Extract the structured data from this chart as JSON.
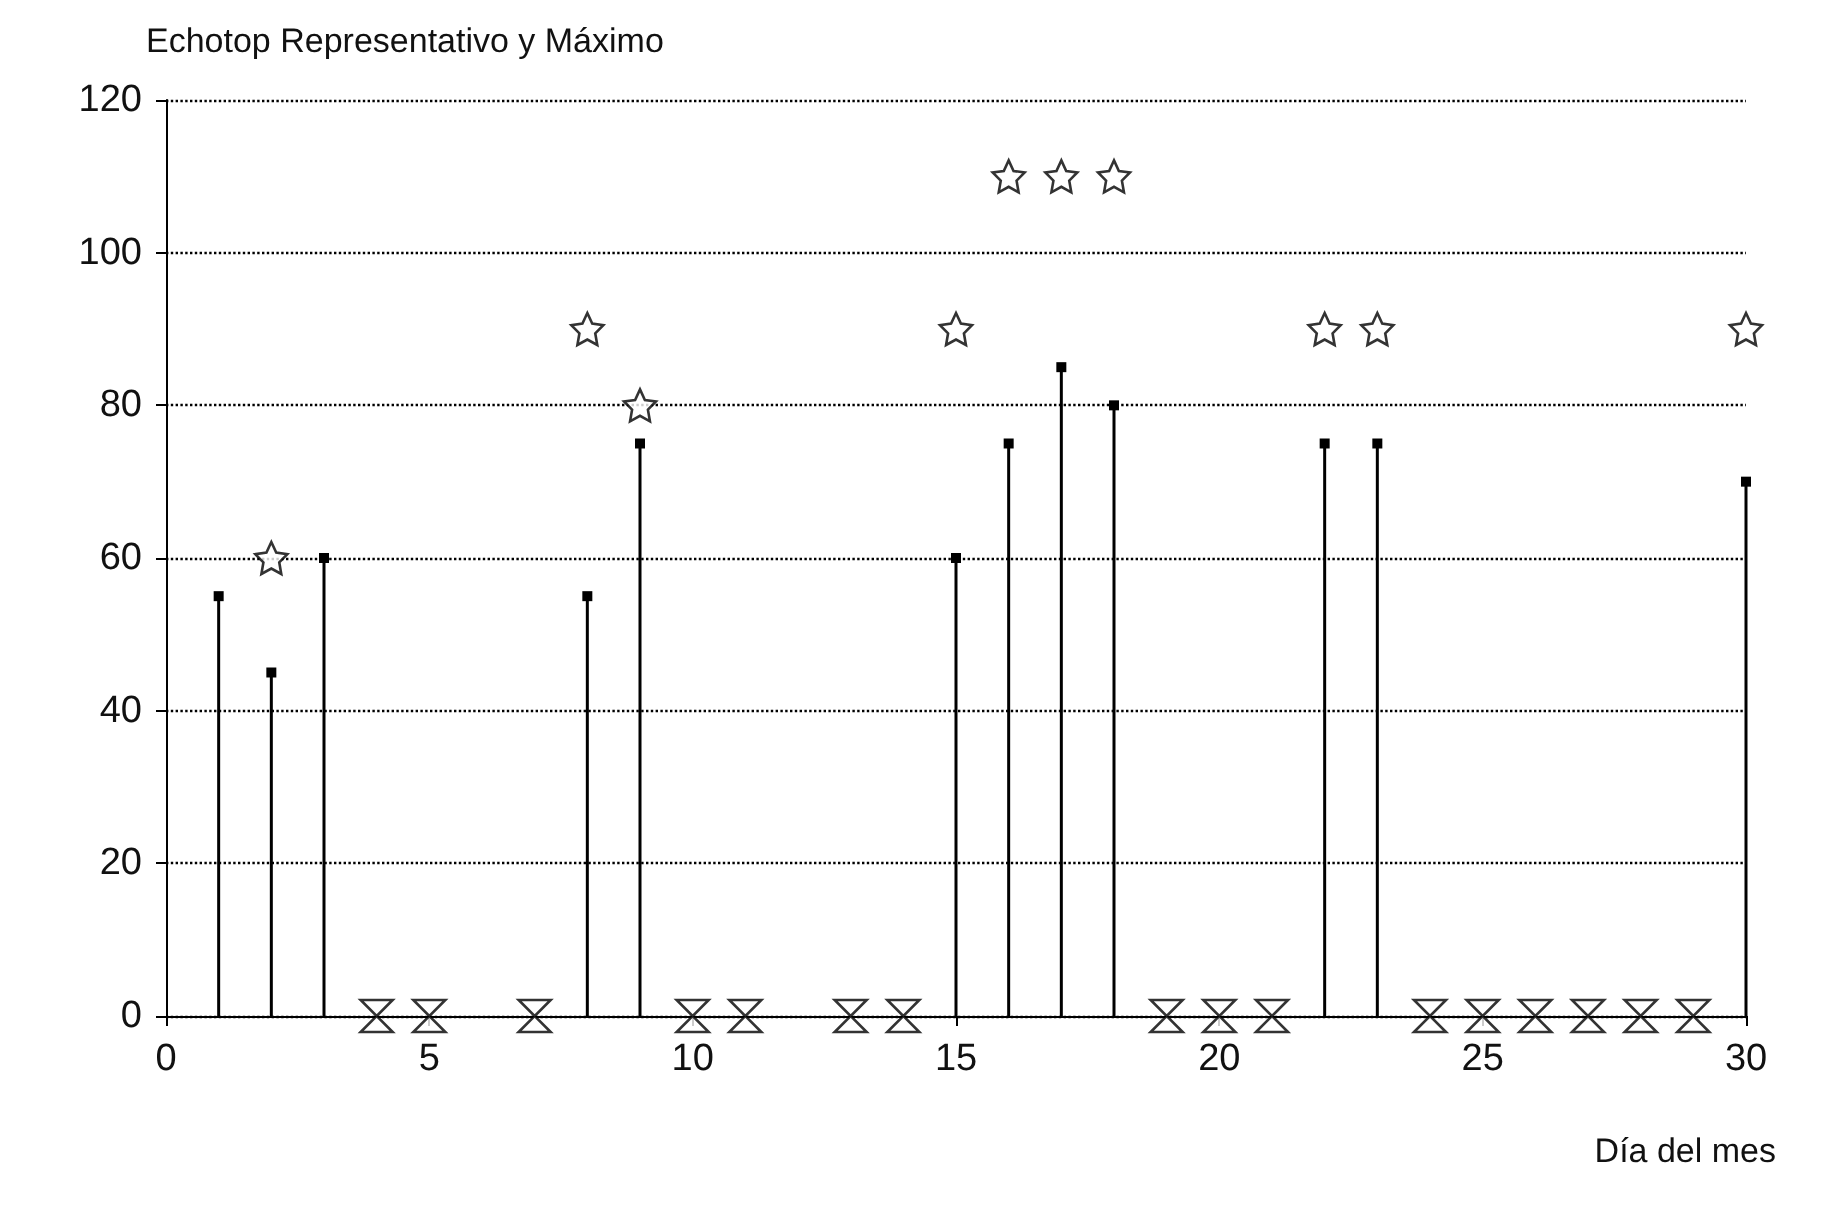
{
  "chart_data": {
    "type": "lollipop",
    "ylabel": "Echotop Representativo y Máximo",
    "xlabel": "Día del mes",
    "xlim": [
      0,
      30
    ],
    "xticks": [
      0,
      5,
      10,
      15,
      20,
      25,
      30
    ],
    "ylim": [
      0,
      120
    ],
    "yticks": [
      0,
      20,
      40,
      60,
      80,
      100,
      120
    ],
    "grid": "y",
    "series": [
      {
        "marker": "square",
        "color": "#000000",
        "x": [
          1,
          2,
          3,
          8,
          9,
          15,
          16,
          17,
          18,
          22,
          23,
          30
        ],
        "values": [
          55,
          45,
          60,
          55,
          75,
          60,
          75,
          85,
          80,
          75,
          75,
          70
        ]
      },
      {
        "type": "scatter",
        "marker": "star",
        "color": "#000000",
        "x": [
          2,
          8,
          9,
          15,
          16,
          17,
          18,
          22,
          23,
          30
        ],
        "values": [
          60,
          90,
          80,
          90,
          110,
          110,
          110,
          90,
          90,
          90
        ]
      },
      {
        "type": "scatter",
        "marker": "triangle",
        "color": "#000000",
        "x": [
          4,
          5,
          7,
          10,
          11,
          13,
          14,
          19,
          20,
          21,
          24,
          25,
          26,
          27,
          28,
          29
        ],
        "values": [
          0,
          0,
          0,
          0,
          0,
          0,
          0,
          0,
          0,
          0,
          0,
          0,
          0,
          0,
          0,
          0
        ]
      }
    ]
  }
}
